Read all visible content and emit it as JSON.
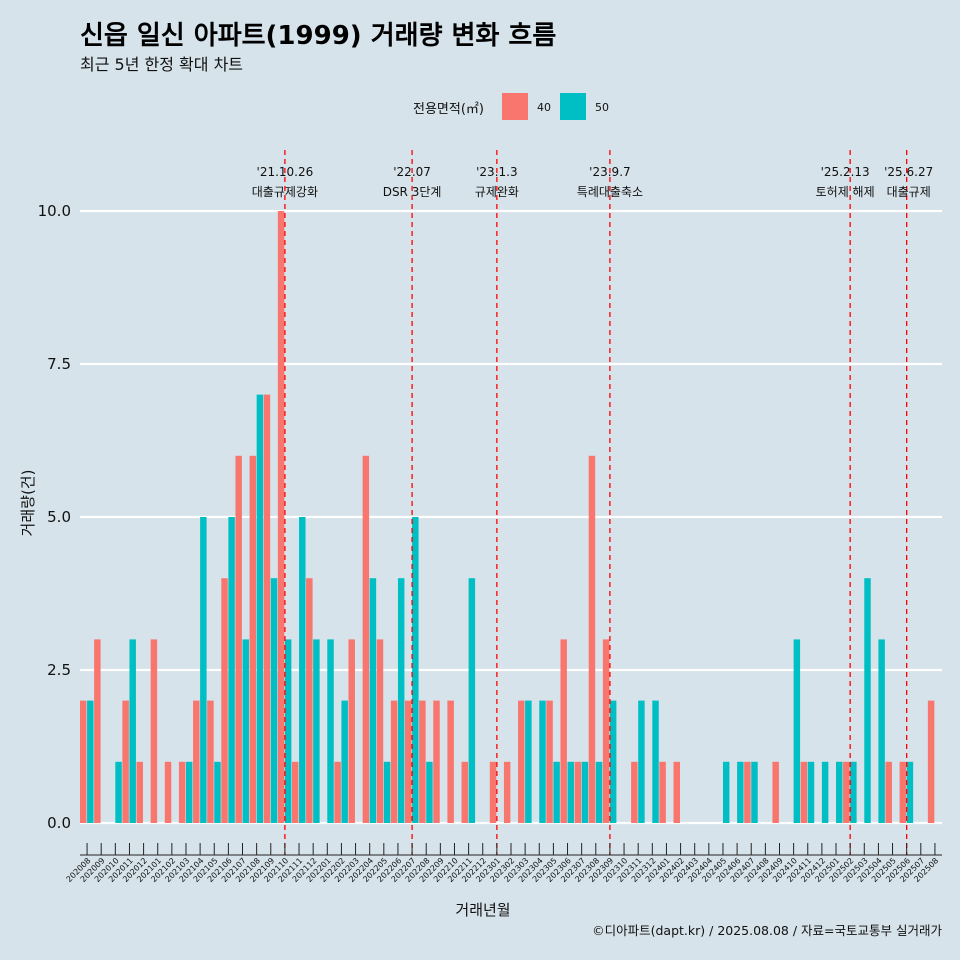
{
  "chart_data": {
    "type": "bar",
    "title": "신읍 일신 아파트(1999) 거래량 변화 흐름",
    "subtitle": "최근 5년 한정 확대 차트",
    "xlabel": "거래년월",
    "ylabel": "거래량(건)",
    "ylim": [
      0,
      10
    ],
    "yticks": [
      "0.0",
      "2.5",
      "5.0",
      "7.5",
      "10.0"
    ],
    "legend_title": "전용면적(㎡)",
    "categories": [
      "202008",
      "202009",
      "202010",
      "202011",
      "202012",
      "202101",
      "202102",
      "202103",
      "202104",
      "202105",
      "202106",
      "202107",
      "202108",
      "202109",
      "202110",
      "202111",
      "202112",
      "202201",
      "202202",
      "202203",
      "202204",
      "202205",
      "202206",
      "202207",
      "202208",
      "202209",
      "202210",
      "202211",
      "202212",
      "202301",
      "202302",
      "202303",
      "202304",
      "202305",
      "202306",
      "202307",
      "202308",
      "202309",
      "202310",
      "202311",
      "202312",
      "202401",
      "202402",
      "202403",
      "202404",
      "202405",
      "202406",
      "202407",
      "202408",
      "202409",
      "202410",
      "202411",
      "202412",
      "202501",
      "202502",
      "202503",
      "202504",
      "202505",
      "202506",
      "202507",
      "202508"
    ],
    "series": [
      {
        "name": "40",
        "color": "#f8766d",
        "values": [
          2,
          3,
          0,
          2,
          1,
          3,
          1,
          1,
          2,
          2,
          4,
          6,
          6,
          7,
          10,
          1,
          4,
          0,
          1,
          3,
          6,
          3,
          2,
          2,
          2,
          2,
          2,
          1,
          0,
          1,
          1,
          2,
          0,
          2,
          3,
          1,
          6,
          3,
          0,
          1,
          0,
          1,
          1,
          0,
          0,
          0,
          0,
          1,
          0,
          1,
          0,
          1,
          0,
          0,
          1,
          0,
          0,
          1,
          1,
          0,
          2
        ]
      },
      {
        "name": "50",
        "color": "#00bfc4",
        "values": [
          2,
          0,
          1,
          3,
          0,
          0,
          0,
          1,
          5,
          1,
          5,
          3,
          7,
          4,
          3,
          5,
          3,
          3,
          2,
          0,
          4,
          1,
          4,
          5,
          1,
          0,
          0,
          4,
          0,
          0,
          0,
          2,
          2,
          1,
          1,
          1,
          1,
          2,
          0,
          2,
          2,
          0,
          0,
          0,
          0,
          1,
          1,
          1,
          0,
          0,
          3,
          1,
          1,
          1,
          1,
          4,
          3,
          0,
          1,
          0,
          0
        ]
      }
    ],
    "annotations": [
      {
        "date": "'21.10.26",
        "label": "대출규제강화",
        "month": "202110"
      },
      {
        "date": "'22.07",
        "label": "DSR 3단계",
        "month": "202207"
      },
      {
        "date": "'23.1.3",
        "label": "규제완화",
        "month": "202301"
      },
      {
        "date": "'23.9.7",
        "label": "특례대출축소",
        "month": "202309"
      },
      {
        "date": "'25.2.13",
        "label": "토허제 해제",
        "month": "202502"
      },
      {
        "date": "'25.6.27",
        "label": "대출규제",
        "month": "202506"
      }
    ],
    "caption": "©디아파트(dapt.kr) / 2025.08.08 / 자료=국토교통부 실거래가"
  }
}
